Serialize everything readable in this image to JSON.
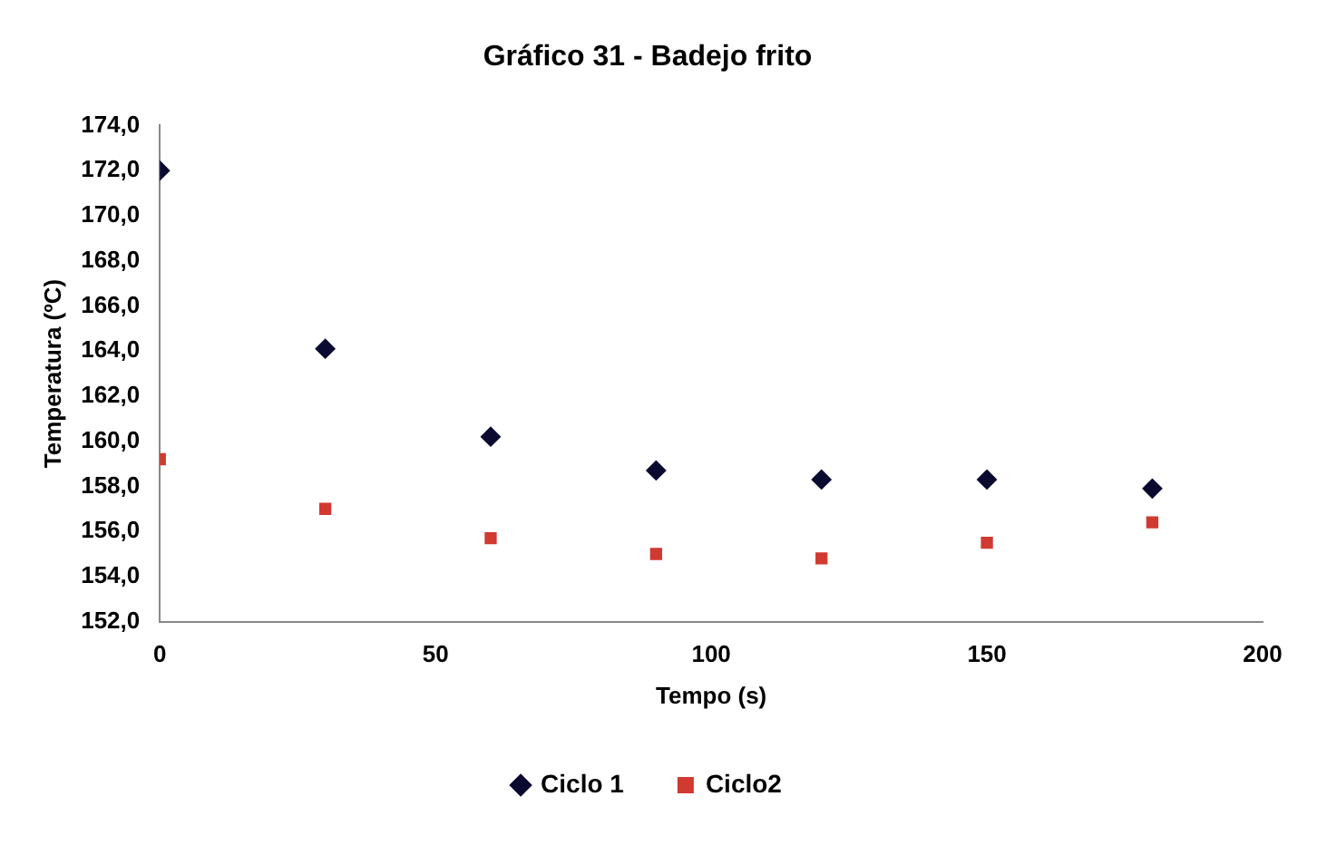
{
  "chart_data": {
    "type": "scatter",
    "title": "Gráfico 31 - Badejo frito",
    "xlabel": "Tempo (s)",
    "ylabel": "Temperatura (ºC)",
    "x": [
      0,
      30,
      60,
      90,
      120,
      150,
      180
    ],
    "series": [
      {
        "name": "Ciclo 1",
        "color": "#0a0a30",
        "marker": "diamond",
        "values": [
          172.0,
          164.1,
          160.2,
          158.7,
          158.3,
          158.3,
          157.9
        ]
      },
      {
        "name": "Ciclo2",
        "color": "#d03a30",
        "marker": "square",
        "values": [
          159.2,
          157.0,
          155.7,
          155.0,
          154.8,
          155.5,
          156.4
        ]
      }
    ],
    "xlim": [
      0,
      200
    ],
    "xticks": [
      0,
      50,
      100,
      150,
      200
    ],
    "ylim": [
      152,
      174
    ],
    "yticks": [
      {
        "value": 152,
        "label": "152,0"
      },
      {
        "value": 154,
        "label": "154,0"
      },
      {
        "value": 156,
        "label": "156,0"
      },
      {
        "value": 158,
        "label": "158,0"
      },
      {
        "value": 160,
        "label": "160,0"
      },
      {
        "value": 162,
        "label": "162,0"
      },
      {
        "value": 164,
        "label": "164,0"
      },
      {
        "value": 166,
        "label": "166,0"
      },
      {
        "value": 168,
        "label": "168,0"
      },
      {
        "value": 170,
        "label": "170,0"
      },
      {
        "value": 172,
        "label": "172,0"
      },
      {
        "value": 174,
        "label": "174,0"
      }
    ],
    "grid": false,
    "legend": "bottom"
  }
}
